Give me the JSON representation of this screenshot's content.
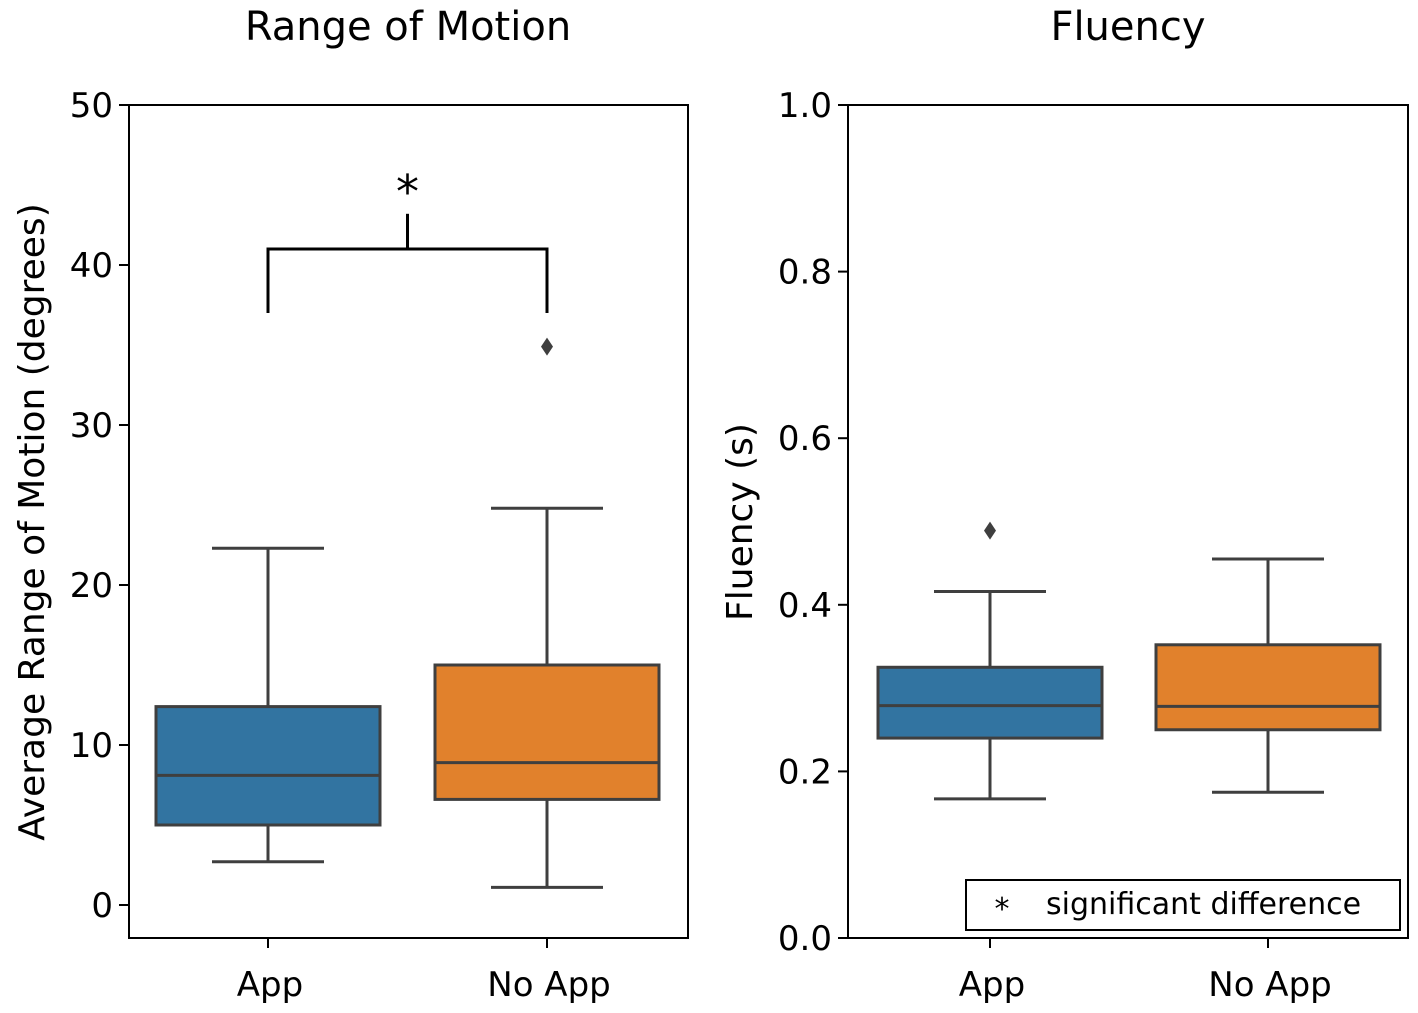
{
  "chart_data": [
    {
      "type": "box",
      "title": "Range of Motion",
      "xlabel": "",
      "ylabel": "Average Range of Motion (degrees)",
      "ylim": [
        -2,
        50
      ],
      "yticks": [
        "0",
        "10",
        "20",
        "30",
        "40",
        "50"
      ],
      "ytick_values": [
        0,
        10,
        20,
        30,
        40,
        50
      ],
      "categories": [
        "App",
        "No App"
      ],
      "boxes": [
        {
          "name": "App",
          "color": "#3274a1",
          "whisker_low": 2.7,
          "q1": 5.0,
          "median": 8.1,
          "q3": 12.4,
          "whisker_high": 22.3,
          "outliers": []
        },
        {
          "name": "No App",
          "color": "#e1812c",
          "whisker_low": 1.1,
          "q1": 6.6,
          "median": 8.9,
          "q3": 15.0,
          "whisker_high": 24.8,
          "outliers": [
            34.9
          ]
        }
      ],
      "significance": {
        "left_y": 37.0,
        "right_y": 37.0,
        "top_y": 41.0,
        "tick_y": 43.2,
        "label": "*"
      }
    },
    {
      "type": "box",
      "title": "Fluency",
      "xlabel": "",
      "ylabel": "Fluency (s)",
      "ylim": [
        0.0,
        1.0
      ],
      "yticks": [
        "0.0",
        "0.2",
        "0.4",
        "0.6",
        "0.8",
        "1.0"
      ],
      "ytick_values": [
        0.0,
        0.2,
        0.4,
        0.6,
        0.8,
        1.0
      ],
      "categories": [
        "App",
        "No App"
      ],
      "boxes": [
        {
          "name": "App",
          "color": "#3274a1",
          "whisker_low": 0.167,
          "q1": 0.24,
          "median": 0.279,
          "q3": 0.325,
          "whisker_high": 0.416,
          "outliers": [
            0.489
          ]
        },
        {
          "name": "No App",
          "color": "#e1812c",
          "whisker_low": 0.175,
          "q1": 0.25,
          "median": 0.278,
          "q3": 0.352,
          "whisker_high": 0.455,
          "outliers": []
        }
      ],
      "legend": {
        "symbol": "*",
        "label": "significant difference",
        "position": "lower-right"
      }
    }
  ]
}
